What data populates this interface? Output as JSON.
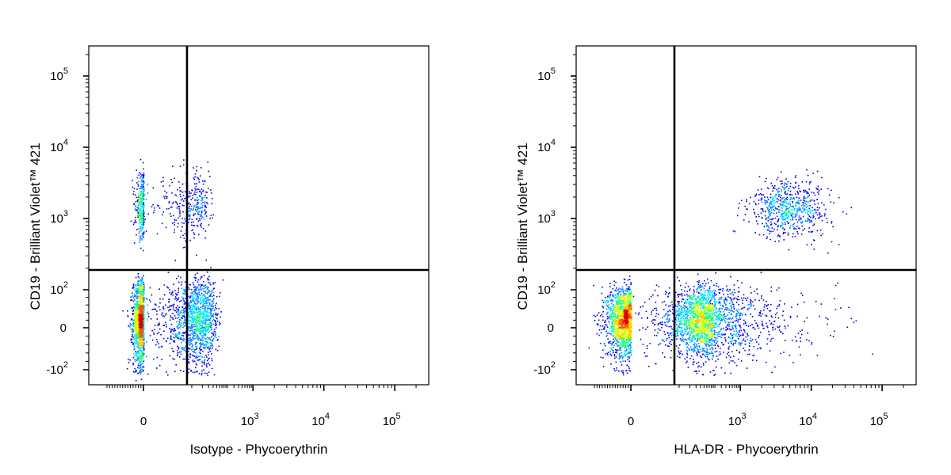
{
  "chart_data": [
    {
      "type": "scatter",
      "style": "flow-cytometry-density-dot-plot",
      "x_scale": "biexponential",
      "y_scale": "biexponential",
      "xlabel": "Isotype - Phycoerythrin",
      "ylabel": "CD19 - Brilliant Violet™ 421",
      "xlim": [
        -300,
        200000
      ],
      "ylim": [
        -250,
        250000
      ],
      "x_ticks": [
        {
          "base": "0",
          "exp": "",
          "value": 0
        },
        {
          "base": "10",
          "exp": "3",
          "value": 1000
        },
        {
          "base": "10",
          "exp": "4",
          "value": 10000
        },
        {
          "base": "10",
          "exp": "5",
          "value": 100000
        }
      ],
      "y_ticks": [
        {
          "base": "-10",
          "exp": "2",
          "value": -100
        },
        {
          "base": "0",
          "exp": "",
          "value": 0
        },
        {
          "base": "10",
          "exp": "2",
          "value": 100
        },
        {
          "base": "10",
          "exp": "3",
          "value": 1000
        },
        {
          "base": "10",
          "exp": "4",
          "value": 10000
        },
        {
          "base": "10",
          "exp": "5",
          "value": 100000
        }
      ],
      "quadrant_gate": {
        "x": 200,
        "y": 200
      },
      "populations": [
        {
          "name_visible": false,
          "x_center": 0,
          "y_center": 20,
          "x_spread": 40,
          "y_spread": 55,
          "count": 2600
        },
        {
          "name_visible": false,
          "x_center": 0,
          "y_center": 1500,
          "x_spread": 30,
          "y_spread": 0.22,
          "count": 650
        }
      ],
      "grid": false,
      "density_colors": [
        "#00009c",
        "#0000ff",
        "#0088ff",
        "#00e5ff",
        "#22ff77",
        "#ccff00",
        "#ffcc00",
        "#ff5500",
        "#dd0000"
      ]
    },
    {
      "type": "scatter",
      "style": "flow-cytometry-density-dot-plot",
      "x_scale": "biexponential",
      "y_scale": "biexponential",
      "xlabel": "HLA-DR - Phycoerythrin",
      "ylabel": "CD19 - Brilliant Violet™ 421",
      "xlim": [
        -300,
        200000
      ],
      "ylim": [
        -250,
        250000
      ],
      "x_ticks": [
        {
          "base": "0",
          "exp": "",
          "value": 0
        },
        {
          "base": "10",
          "exp": "3",
          "value": 1000
        },
        {
          "base": "10",
          "exp": "4",
          "value": 10000
        },
        {
          "base": "10",
          "exp": "5",
          "value": 100000
        }
      ],
      "y_ticks": [
        {
          "base": "-10",
          "exp": "2",
          "value": -100
        },
        {
          "base": "0",
          "exp": "",
          "value": 0
        },
        {
          "base": "10",
          "exp": "2",
          "value": 100
        },
        {
          "base": "10",
          "exp": "3",
          "value": 1000
        },
        {
          "base": "10",
          "exp": "4",
          "value": 10000
        },
        {
          "base": "10",
          "exp": "5",
          "value": 100000
        }
      ],
      "quadrant_gate": {
        "x": 200,
        "y": 200
      },
      "populations": [
        {
          "name_visible": false,
          "x_center": 0,
          "y_center": 20,
          "x_spread": 90,
          "y_spread": 45,
          "count": 2800
        },
        {
          "name_visible": false,
          "x_center": 600,
          "y_center": 20,
          "x_spread": 1.0,
          "y_spread": 50,
          "count": 700
        },
        {
          "name_visible": false,
          "x_center": 5000,
          "y_center": 1400,
          "x_spread": 0.28,
          "y_spread": 0.2,
          "count": 650
        }
      ],
      "grid": false,
      "density_colors": [
        "#00009c",
        "#0000ff",
        "#0088ff",
        "#00e5ff",
        "#22ff77",
        "#ccff00",
        "#ffcc00",
        "#ff5500",
        "#dd0000"
      ]
    }
  ]
}
